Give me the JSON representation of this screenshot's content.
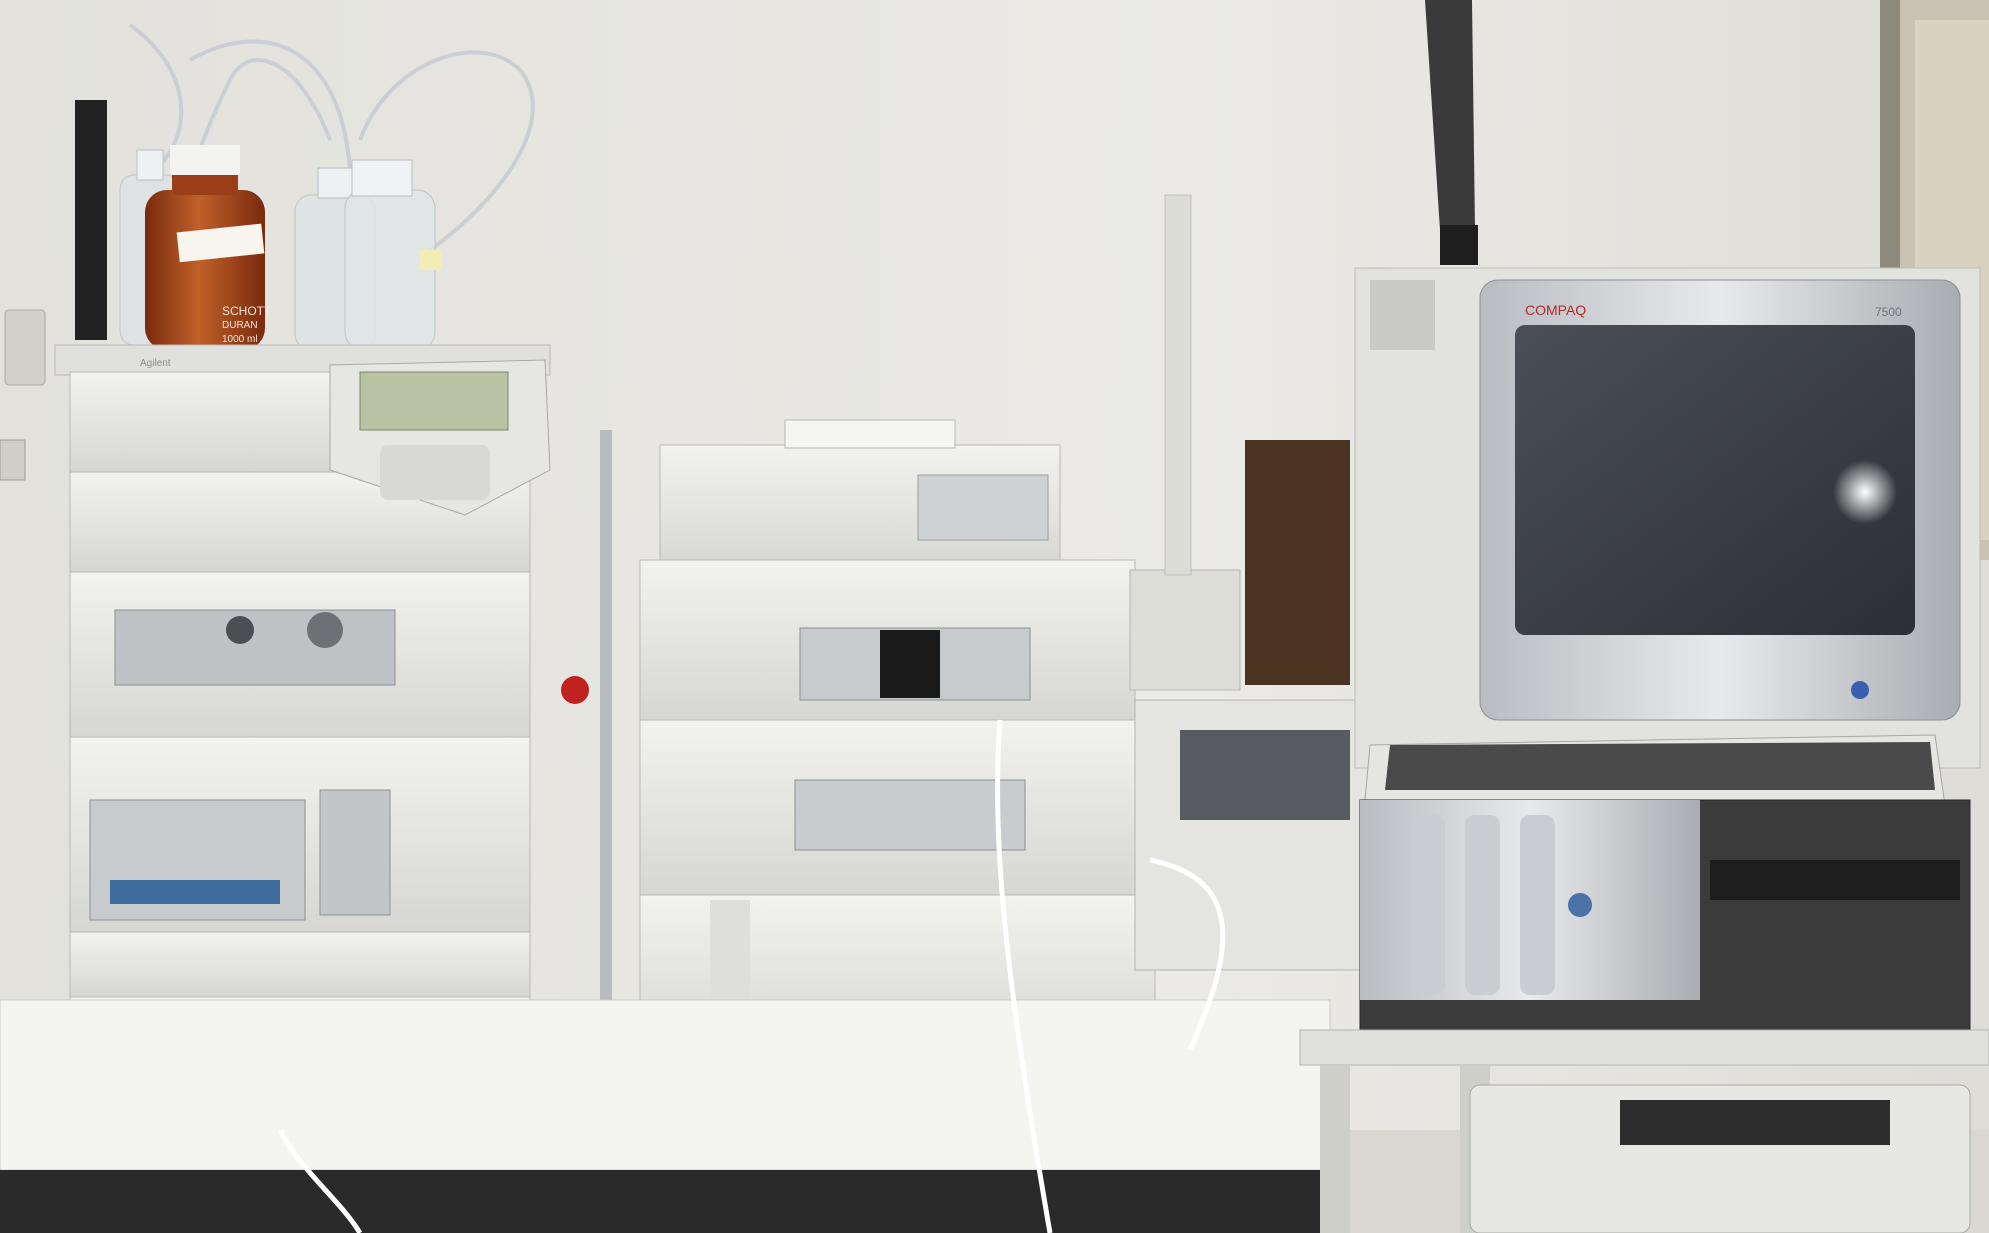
{
  "scene": {
    "labels": {
      "amber_bottle_brand": "SCHOTT",
      "amber_bottle_brand2": "DURAN",
      "amber_bottle_volume": "1000 ml",
      "module_brand": "Agilent",
      "monitor_brand": "COMPAQ",
      "monitor_model": "7500"
    },
    "colors": {
      "wall": "#e7e6e1",
      "instrument": "#e4e4e0",
      "amber_glass": "#a8441c",
      "screen": "#3a3e44",
      "table": "#f3f3f0"
    }
  }
}
